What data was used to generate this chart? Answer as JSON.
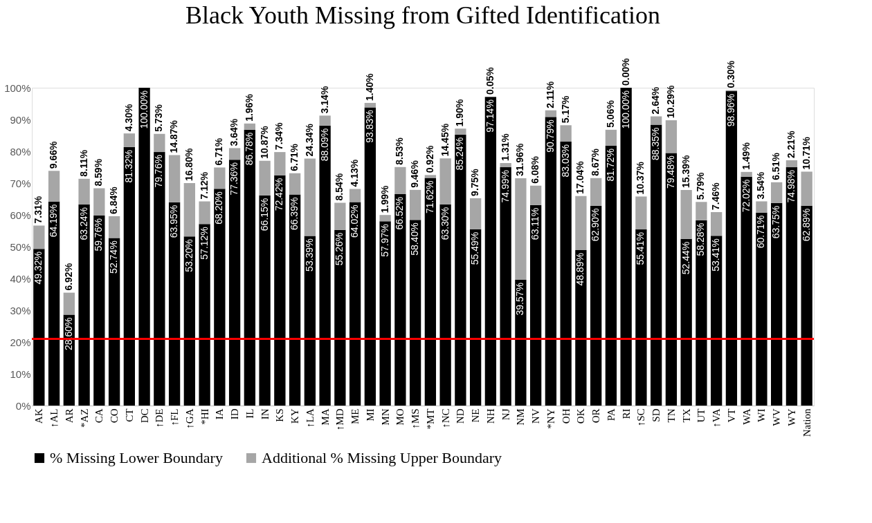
{
  "chart_data": {
    "type": "bar",
    "title": "Black Youth Missing from Gifted Identification",
    "stacked": true,
    "legend": "bottom",
    "grid": false,
    "categories": [
      "AK",
      "↑AL",
      "AR",
      "*AZ",
      "CA",
      "CO",
      "CT",
      "DC",
      "↑DE",
      "↑FL",
      "↑GA",
      "*HI",
      "IA",
      "ID",
      "IL",
      "IN",
      "KS",
      "KY",
      "↑LA",
      "MA",
      "↑MD",
      "ME",
      "MI",
      "MN",
      "MO",
      "↑MS",
      "*MT",
      "↑NC",
      "ND",
      "NE",
      "NH",
      "NJ",
      "NM",
      "NV",
      "*NY",
      "OH",
      "OK",
      "OR",
      "PA",
      "RI",
      "↑SC",
      "SD",
      "TN",
      "TX",
      "UT",
      "↑VA",
      "VT",
      "WA",
      "WI",
      "WV",
      "WY",
      "Nation"
    ],
    "series": [
      {
        "name": "% Missing Lower Boundary",
        "color": "#000000",
        "values": [
          49.32,
          64.19,
          28.6,
          63.24,
          59.76,
          52.74,
          81.32,
          100.0,
          79.76,
          63.95,
          53.2,
          57.12,
          68.2,
          77.36,
          86.78,
          66.15,
          72.42,
          66.39,
          53.39,
          88.09,
          55.26,
          64.02,
          93.83,
          57.97,
          66.52,
          58.4,
          71.62,
          63.3,
          85.24,
          55.49,
          97.14,
          74.99,
          39.57,
          63.11,
          90.79,
          83.03,
          48.89,
          62.9,
          81.72,
          100.0,
          55.41,
          88.35,
          79.48,
          52.44,
          58.28,
          53.41,
          98.96,
          72.02,
          60.71,
          63.75,
          74.98,
          62.89
        ],
        "value_labels": [
          "49.32%",
          "64.19%",
          "28.60%",
          "63.24%",
          "59.76%",
          "52.74%",
          "81.32%",
          "100.00%",
          "79.76%",
          "63.95%",
          "53.20%",
          "57.12%",
          "68.20%",
          "77.36%",
          "86.78%",
          "66.15%",
          "72.42%",
          "66.39%",
          "53.39%",
          "88.09%",
          "55.26%",
          "64.02%",
          "93.83%",
          "57.97%",
          "66.52%",
          "58.40%",
          "71.62%",
          "63.30%",
          "85.24%",
          "55.49%",
          "97.14%",
          "74.99%",
          "39.57%",
          "63.11%",
          "90.79%",
          "83.03%",
          "48.89%",
          "62.90%",
          "81.72%",
          "100.00%",
          "55.41%",
          "88.35%",
          "79.48%",
          "52.44%",
          "58.28%",
          "53.41%",
          "98.96%",
          "72.02%",
          "60.71%",
          "63.75%",
          "74.98%",
          "62.89%"
        ]
      },
      {
        "name": "Additional % Missing Upper Boundary",
        "color": "#a6a6a6",
        "values": [
          7.31,
          9.66,
          6.92,
          8.11,
          8.59,
          6.84,
          4.3,
          null,
          5.73,
          14.87,
          16.8,
          7.12,
          6.71,
          3.64,
          1.96,
          10.87,
          7.34,
          6.71,
          24.34,
          3.14,
          8.54,
          4.13,
          1.4,
          1.99,
          8.53,
          9.46,
          0.92,
          14.45,
          1.9,
          9.75,
          0.05,
          1.31,
          31.96,
          6.08,
          2.11,
          5.17,
          17.04,
          8.67,
          5.06,
          0.0,
          10.37,
          2.64,
          10.29,
          15.39,
          5.79,
          7.46,
          0.3,
          1.49,
          3.54,
          6.51,
          2.21,
          10.71
        ],
        "value_labels": [
          "7.31%",
          "9.66%",
          "6.92%",
          "8.11%",
          "8.59%",
          "6.84%",
          "4.30%",
          null,
          "5.73%",
          "14.87%",
          "16.80%",
          "7.12%",
          "6.71%",
          "3.64%",
          "1.96%",
          "10.87%",
          "7.34%",
          "6.71%",
          "24.34%",
          "3.14%",
          "8.54%",
          "4.13%",
          "1.40%",
          "1.99%",
          "8.53%",
          "9.46%",
          "0.92%",
          "14.45%",
          "1.90%",
          "9.75%",
          "0.05%",
          "1.31%",
          "31.96%",
          "6.08%",
          "2.11%",
          "5.17%",
          "17.04%",
          "8.67%",
          "5.06%",
          "0.00%",
          "10.37%",
          "2.64%",
          "10.29%",
          "15.39%",
          "5.79%",
          "7.46%",
          "0.30%",
          "1.49%",
          "3.54%",
          "6.51%",
          "2.21%",
          "10.71%"
        ]
      }
    ],
    "ylim": [
      0,
      100
    ],
    "yticks": [
      {
        "value": 0,
        "label": "0%"
      },
      {
        "value": 10,
        "label": "10%"
      },
      {
        "value": 20,
        "label": "20%"
      },
      {
        "value": 30,
        "label": "30%"
      },
      {
        "value": 40,
        "label": "40%"
      },
      {
        "value": 50,
        "label": "50%"
      },
      {
        "value": 60,
        "label": "60%"
      },
      {
        "value": 70,
        "label": "70%"
      },
      {
        "value": 80,
        "label": "80%"
      },
      {
        "value": 90,
        "label": "90%"
      },
      {
        "value": 100,
        "label": "100%"
      }
    ],
    "ref_lines": [
      {
        "axis": "y",
        "value": 21,
        "color": "#ff0000"
      }
    ]
  }
}
